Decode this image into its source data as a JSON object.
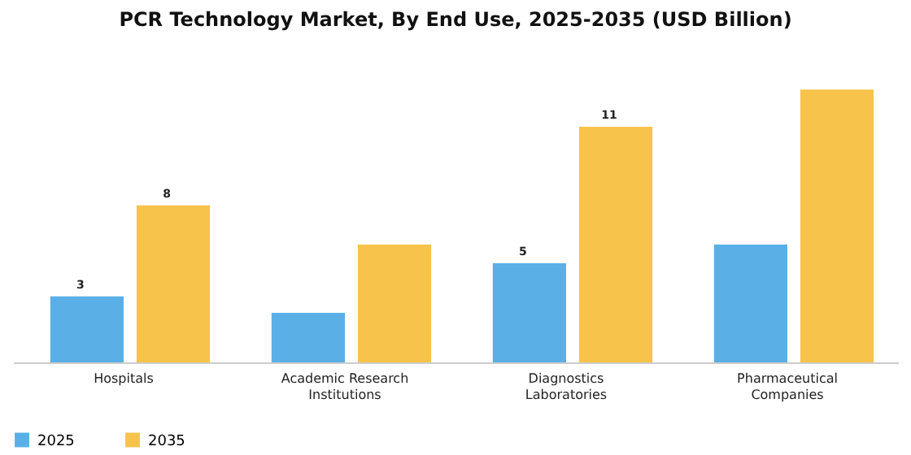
{
  "chart_data": {
    "type": "bar",
    "title": "PCR Technology Market, By End Use, 2025-2035 (USD Billion)",
    "categories": [
      "Hospitals",
      "Academic Research Institutions",
      "Diagnostics Laboratories",
      "Pharmaceutical Companies"
    ],
    "legend": "bottom",
    "series": [
      {
        "name": "2025",
        "color": "#5ab0e6",
        "values": [
          3.2,
          2.4,
          4.8,
          5.7
        ],
        "value_labels": [
          "3",
          null,
          "5",
          null
        ]
      },
      {
        "name": "2035",
        "color": "#f8c34a",
        "values": [
          7.6,
          5.7,
          11.4,
          13.2
        ],
        "value_labels": [
          "8",
          null,
          "11",
          null
        ]
      }
    ]
  }
}
